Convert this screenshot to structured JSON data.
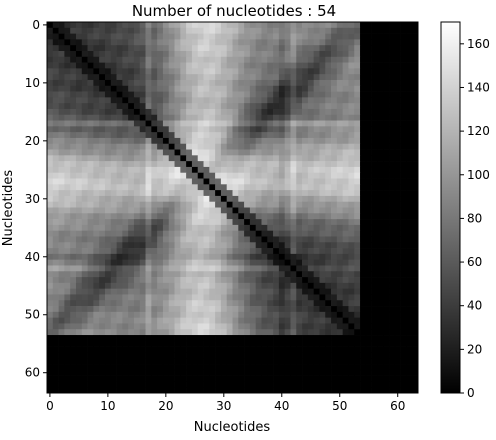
{
  "chart_data": {
    "type": "heatmap",
    "title": "Number of nucleotides : 54",
    "xlabel": "Nucleotides",
    "ylabel": "Nucleotides",
    "matrix_size": 64,
    "data_size": 54,
    "x_ticks": [
      0,
      10,
      20,
      30,
      40,
      50,
      60
    ],
    "y_ticks": [
      0,
      10,
      20,
      30,
      40,
      50,
      60
    ],
    "xlim": [
      -0.5,
      63.5
    ],
    "ylim": [
      63.5,
      -0.5
    ],
    "colormap": "gray",
    "colorbar": {
      "range": [
        0,
        170
      ],
      "ticks": [
        0,
        20,
        40,
        60,
        80,
        100,
        120,
        140,
        160
      ]
    },
    "padding_value": 0,
    "diagonal_value": 0
  }
}
